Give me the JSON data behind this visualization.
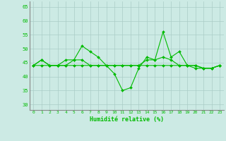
{
  "xlabel": "Humidité relative (%)",
  "background_color": "#cceae4",
  "grid_color": "#aaccc6",
  "line_color": "#00bb00",
  "xlim": [
    -0.5,
    23.5
  ],
  "ylim": [
    28,
    67
  ],
  "yticks": [
    30,
    35,
    40,
    45,
    50,
    55,
    60,
    65
  ],
  "xticks": [
    0,
    1,
    2,
    3,
    4,
    5,
    6,
    7,
    8,
    9,
    10,
    11,
    12,
    13,
    14,
    15,
    16,
    17,
    18,
    19,
    20,
    21,
    22,
    23
  ],
  "line1": [
    44,
    46,
    44,
    44,
    44,
    46,
    51,
    49,
    47,
    44,
    41,
    35,
    36,
    43,
    47,
    46,
    56,
    47,
    49,
    44,
    44,
    43,
    43,
    44
  ],
  "line2": [
    44,
    46,
    44,
    44,
    46,
    46,
    46,
    44,
    44,
    44,
    44,
    44,
    44,
    44,
    46,
    46,
    47,
    46,
    44,
    44,
    43,
    43,
    43,
    44
  ],
  "line3": [
    44,
    44,
    44,
    44,
    44,
    44,
    44,
    44,
    44,
    44,
    44,
    44,
    44,
    44,
    44,
    44,
    44,
    44,
    44,
    44,
    44,
    43,
    43,
    44
  ]
}
